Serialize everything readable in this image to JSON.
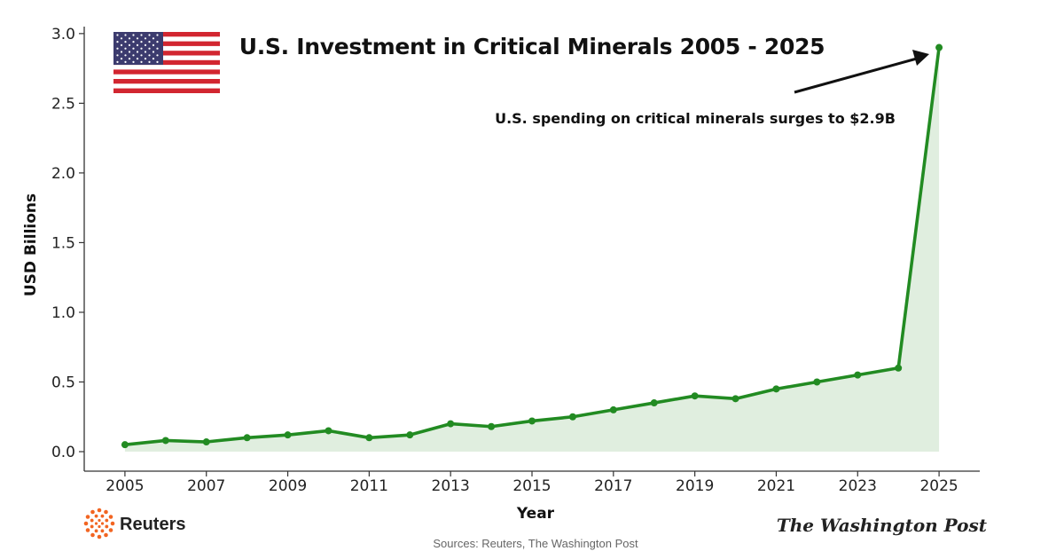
{
  "chart_data": {
    "type": "area",
    "title": "U.S. Investment in Critical Minerals 2005 - 2025",
    "xlabel": "Year",
    "ylabel": "USD Billions",
    "x": [
      2005,
      2006,
      2007,
      2008,
      2009,
      2010,
      2011,
      2012,
      2013,
      2014,
      2015,
      2016,
      2017,
      2018,
      2019,
      2020,
      2021,
      2022,
      2023,
      2024,
      2025
    ],
    "y": [
      0.05,
      0.08,
      0.07,
      0.1,
      0.12,
      0.15,
      0.1,
      0.12,
      0.2,
      0.18,
      0.22,
      0.25,
      0.3,
      0.35,
      0.4,
      0.38,
      0.45,
      0.5,
      0.55,
      0.6,
      2.9
    ],
    "xticks": [
      "2005",
      "2007",
      "2009",
      "2011",
      "2013",
      "2015",
      "2017",
      "2019",
      "2021",
      "2023",
      "2025"
    ],
    "yticks": [
      "0.0",
      "0.5",
      "1.0",
      "1.5",
      "2.0",
      "2.5",
      "3.0"
    ],
    "xlim": [
      2004.0,
      2026.0
    ],
    "ylim": [
      -0.14,
      3.05
    ],
    "grid": false,
    "annotation": "U.S. spending on critical minerals surges to $2.9B",
    "colors": {
      "line": "#228b22",
      "fill": "#e0eedf",
      "axis": "#333333"
    }
  },
  "footer": {
    "source": "Sources: Reuters, The Washington Post",
    "reuters": "Reuters",
    "wapo": "The Washington Post"
  },
  "decor": {
    "flag_icon": "us-flag-icon",
    "reuters_icon": "reuters-logo-icon"
  }
}
